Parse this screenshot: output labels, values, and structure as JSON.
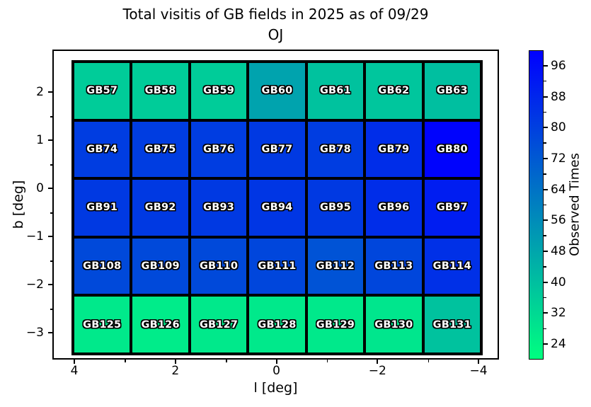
{
  "chart_data": {
    "type": "heatmap",
    "title": "Total visitis of GB fields in 2025 as of 09/29",
    "subtitle": "OJ",
    "xlabel": "l [deg]",
    "ylabel": "b [deg]",
    "x_tick_labels": [
      "4",
      "2",
      "0",
      "−2",
      "−4"
    ],
    "y_tick_labels": [
      "2",
      "1",
      "0",
      "−1",
      "−2",
      "−3"
    ],
    "x_axis_reversed": true,
    "grid_shape": {
      "rows": 5,
      "cols": 7
    },
    "colorbar": {
      "label": "Observed Times",
      "tick_labels": [
        96,
        88,
        80,
        72,
        64,
        56,
        48,
        40,
        32,
        24
      ],
      "vmin": 20,
      "vmax": 100,
      "colormap": "winter_r",
      "color_low": "#00ff80",
      "color_high": "#0000ff"
    },
    "rows": [
      {
        "fields": [
          "GB57",
          "GB58",
          "GB59",
          "GB60",
          "GB61",
          "GB62",
          "GB63"
        ],
        "values": [
          36,
          36,
          36,
          49,
          39,
          38,
          40
        ]
      },
      {
        "fields": [
          "GB74",
          "GB75",
          "GB76",
          "GB77",
          "GB78",
          "GB79",
          "GB80"
        ],
        "values": [
          81,
          81,
          81,
          82,
          81,
          86,
          99
        ]
      },
      {
        "fields": [
          "GB91",
          "GB92",
          "GB93",
          "GB94",
          "GB95",
          "GB96",
          "GB97"
        ],
        "values": [
          82,
          82,
          82,
          83,
          82,
          86,
          91
        ]
      },
      {
        "fields": [
          "GB108",
          "GB109",
          "GB110",
          "GB111",
          "GB112",
          "GB113",
          "GB114"
        ],
        "values": [
          77,
          77,
          77,
          78,
          74,
          78,
          85
        ]
      },
      {
        "fields": [
          "GB125",
          "GB126",
          "GB127",
          "GB128",
          "GB129",
          "GB130",
          "GB131"
        ],
        "values": [
          27,
          26,
          27,
          27,
          27,
          28,
          39
        ]
      }
    ]
  }
}
